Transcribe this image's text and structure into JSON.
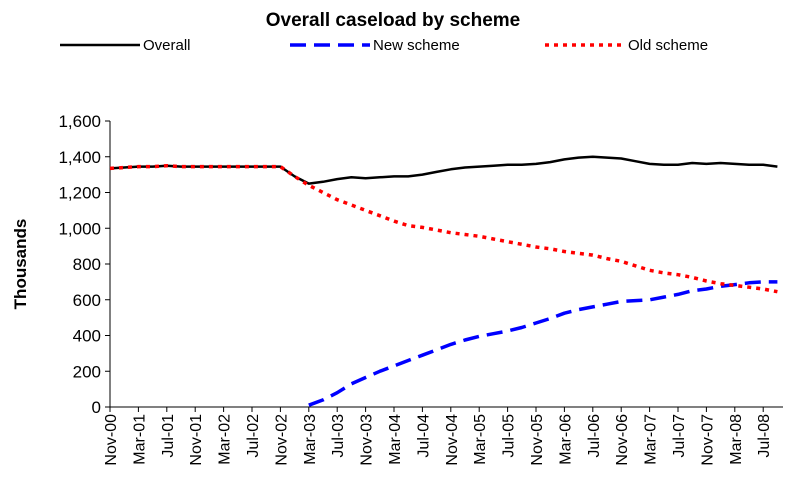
{
  "chart_data": {
    "type": "line",
    "title": "Overall caseload by scheme",
    "y_label": "Thousands",
    "categories": [
      "Nov-00",
      null,
      "Mar-01",
      null,
      "Jul-01",
      null,
      "Nov-01",
      null,
      "Mar-02",
      null,
      "Jul-02",
      null,
      "Nov-02",
      null,
      "Mar-03",
      null,
      "Jul-03",
      null,
      "Nov-03",
      null,
      "Mar-04",
      null,
      "Jul-04",
      null,
      "Nov-04",
      null,
      "Mar-05",
      null,
      "Jul-05",
      null,
      "Nov-05",
      null,
      "Mar-06",
      null,
      "Jul-06",
      null,
      "Nov-06",
      null,
      "Mar-07",
      null,
      "Jul-07",
      null,
      "Nov-07",
      null,
      "Mar-08",
      null,
      "Jul-08",
      null
    ],
    "series": [
      {
        "name": "Overall",
        "color": "#000000",
        "style": "solid",
        "values": [
          1335,
          1340,
          1345,
          1345,
          1350,
          1345,
          1345,
          1345,
          1345,
          1345,
          1345,
          1345,
          1345,
          1290,
          1250,
          1260,
          1275,
          1285,
          1280,
          1285,
          1290,
          1290,
          1300,
          1315,
          1330,
          1340,
          1345,
          1350,
          1355,
          1355,
          1360,
          1370,
          1385,
          1395,
          1400,
          1395,
          1390,
          1375,
          1360,
          1355,
          1355,
          1365,
          1360,
          1365,
          1360,
          1355,
          1355,
          1345
        ]
      },
      {
        "name": "New scheme",
        "color": "#0000ff",
        "style": "dashed",
        "values": [
          null,
          null,
          null,
          null,
          null,
          null,
          null,
          null,
          null,
          null,
          null,
          null,
          null,
          null,
          10,
          40,
          80,
          130,
          165,
          200,
          230,
          260,
          290,
          320,
          350,
          375,
          395,
          410,
          425,
          445,
          470,
          495,
          525,
          545,
          560,
          575,
          590,
          595,
          600,
          615,
          630,
          650,
          660,
          675,
          685,
          695,
          700,
          700
        ]
      },
      {
        "name": "Old scheme",
        "color": "#ff0000",
        "style": "dotted",
        "values": [
          1335,
          1340,
          1345,
          1345,
          1350,
          1345,
          1345,
          1345,
          1345,
          1345,
          1345,
          1345,
          1345,
          1290,
          1240,
          1200,
          1160,
          1130,
          1100,
          1070,
          1040,
          1015,
          1005,
          990,
          975,
          965,
          955,
          940,
          925,
          910,
          895,
          885,
          870,
          860,
          850,
          830,
          815,
          790,
          765,
          750,
          740,
          725,
          705,
          690,
          680,
          670,
          660,
          645
        ]
      }
    ],
    "ylim": [
      0,
      1600
    ],
    "yticks": [
      0,
      200,
      400,
      600,
      {
        "value": 800,
        "label": "800"
      },
      {
        "value": 1000,
        "label": "1,000"
      },
      {
        "value": 1200,
        "label": "1,200"
      },
      {
        "value": 1400,
        "label": "1,400"
      },
      {
        "value": 1600,
        "label": "1,600"
      }
    ],
    "legend": "top",
    "grid": false
  }
}
